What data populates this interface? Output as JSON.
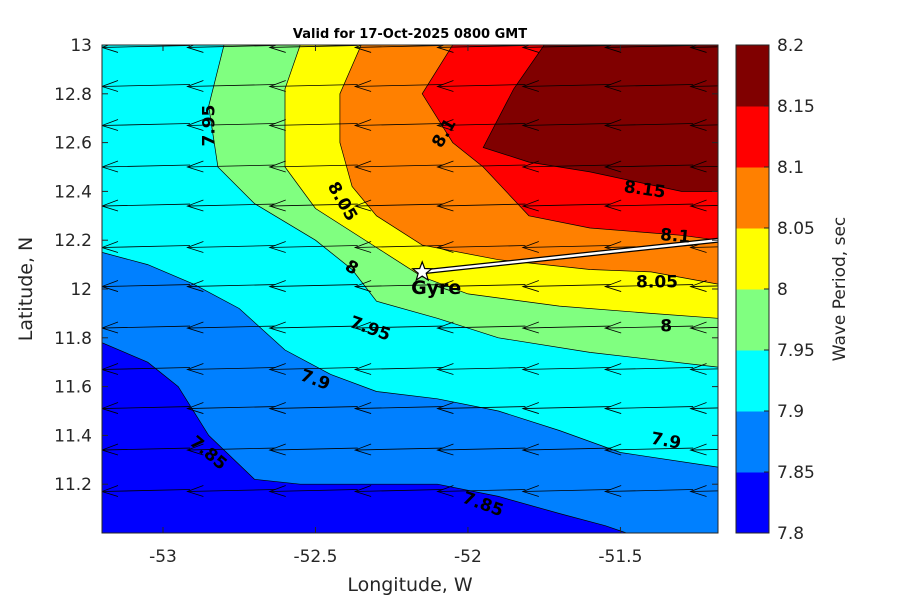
{
  "chart_data": {
    "type": "filled-contour",
    "title": "Valid for 17-Oct-2025 0800 GMT",
    "xlabel": "Longitude, W",
    "ylabel": "Latitude, N",
    "colorbar_label": "Wave Period, sec",
    "xlim": [
      -53.2,
      -51.18
    ],
    "ylim": [
      11.0,
      13.0
    ],
    "xticks": [
      -53,
      -52.5,
      -52,
      -51.5
    ],
    "xtick_labels": [
      "-53",
      "-52.5",
      "-52",
      "-51.5"
    ],
    "yticks": [
      11.2,
      11.4,
      11.6,
      11.8,
      12.0,
      12.2,
      12.4,
      12.6,
      12.8,
      13.0
    ],
    "ytick_labels": [
      "11.2",
      "11.4",
      "11.6",
      "11.8",
      "12",
      "12.2",
      "12.4",
      "12.6",
      "12.8",
      "13"
    ],
    "levels": [
      7.8,
      7.85,
      7.9,
      7.95,
      8.0,
      8.05,
      8.1,
      8.15,
      8.2
    ],
    "level_labels": [
      "7.8",
      "7.85",
      "7.9",
      "7.95",
      "8",
      "8.05",
      "8.1",
      "8.15",
      "8.2"
    ],
    "colors": [
      "#0000ff",
      "#0080ff",
      "#00ffff",
      "#80ff80",
      "#ffff00",
      "#ff8000",
      "#ff0000",
      "#800000"
    ],
    "contours": [
      {
        "level": 7.85,
        "points": [
          [
            -53.2,
            11.78
          ],
          [
            -53.05,
            11.7
          ],
          [
            -52.95,
            11.6
          ],
          [
            -52.85,
            11.4
          ],
          [
            -52.7,
            11.22
          ],
          [
            -52.55,
            11.2
          ],
          [
            -52.3,
            11.2
          ],
          [
            -52.1,
            11.2
          ],
          [
            -51.9,
            11.15
          ],
          [
            -51.7,
            11.08
          ],
          [
            -51.55,
            11.03
          ],
          [
            -51.48,
            11.0
          ]
        ]
      },
      {
        "level": 7.9,
        "points": [
          [
            -53.2,
            12.15
          ],
          [
            -53.05,
            12.1
          ],
          [
            -52.9,
            12.02
          ],
          [
            -52.75,
            11.92
          ],
          [
            -52.6,
            11.75
          ],
          [
            -52.45,
            11.65
          ],
          [
            -52.3,
            11.58
          ],
          [
            -52.1,
            11.55
          ],
          [
            -51.9,
            11.5
          ],
          [
            -51.7,
            11.42
          ],
          [
            -51.5,
            11.33
          ],
          [
            -51.18,
            11.27
          ]
        ]
      },
      {
        "level": 7.95,
        "points": [
          [
            -52.8,
            13.0
          ],
          [
            -52.85,
            12.75
          ],
          [
            -52.82,
            12.5
          ],
          [
            -52.7,
            12.35
          ],
          [
            -52.5,
            12.2
          ],
          [
            -52.38,
            12.08
          ],
          [
            -52.3,
            11.95
          ],
          [
            -52.1,
            11.88
          ],
          [
            -51.9,
            11.8
          ],
          [
            -51.6,
            11.74
          ],
          [
            -51.18,
            11.68
          ]
        ]
      },
      {
        "level": 8.0,
        "points": [
          [
            -52.55,
            13.0
          ],
          [
            -52.6,
            12.82
          ],
          [
            -52.6,
            12.5
          ],
          [
            -52.5,
            12.33
          ],
          [
            -52.3,
            12.17
          ],
          [
            -52.15,
            12.05
          ],
          [
            -52.0,
            11.98
          ],
          [
            -51.7,
            11.93
          ],
          [
            -51.4,
            11.9
          ],
          [
            -51.18,
            11.88
          ]
        ]
      },
      {
        "level": 8.05,
        "points": [
          [
            -52.35,
            13.0
          ],
          [
            -52.42,
            12.8
          ],
          [
            -52.42,
            12.6
          ],
          [
            -52.38,
            12.42
          ],
          [
            -52.3,
            12.3
          ],
          [
            -52.15,
            12.18
          ],
          [
            -51.9,
            12.12
          ],
          [
            -51.6,
            12.08
          ],
          [
            -51.4,
            12.07
          ],
          [
            -51.18,
            12.02
          ]
        ]
      },
      {
        "level": 8.1,
        "points": [
          [
            -52.05,
            13.0
          ],
          [
            -52.15,
            12.8
          ],
          [
            -52.05,
            12.6
          ],
          [
            -51.95,
            12.5
          ],
          [
            -51.8,
            12.3
          ],
          [
            -51.6,
            12.25
          ],
          [
            -51.3,
            12.22
          ],
          [
            -51.18,
            12.2
          ]
        ]
      },
      {
        "level": 8.15,
        "points": [
          [
            -51.75,
            13.0
          ],
          [
            -51.85,
            12.82
          ],
          [
            -51.95,
            12.58
          ],
          [
            -51.8,
            12.52
          ],
          [
            -51.6,
            12.48
          ],
          [
            -51.3,
            12.4
          ],
          [
            -51.18,
            12.4
          ]
        ]
      }
    ],
    "contour_labels": [
      {
        "text": "7.95",
        "lon": -52.85,
        "lat": 12.67,
        "angle": -90
      },
      {
        "text": "8.05",
        "lon": -52.41,
        "lat": 12.36,
        "angle": 60
      },
      {
        "text": "8.1",
        "lon": -52.08,
        "lat": 12.64,
        "angle": -60
      },
      {
        "text": "8.15",
        "lon": -51.42,
        "lat": 12.41,
        "angle": 8
      },
      {
        "text": "8.1",
        "lon": -51.32,
        "lat": 12.22,
        "angle": 5
      },
      {
        "text": "8",
        "lon": -52.38,
        "lat": 12.09,
        "angle": 30
      },
      {
        "text": "8.05",
        "lon": -51.38,
        "lat": 12.03,
        "angle": 0
      },
      {
        "text": "7.95",
        "lon": -52.32,
        "lat": 11.84,
        "angle": 20
      },
      {
        "text": "8",
        "lon": -51.35,
        "lat": 11.85,
        "angle": 0
      },
      {
        "text": "7.9",
        "lon": -52.5,
        "lat": 11.63,
        "angle": 20
      },
      {
        "text": "7.9",
        "lon": -51.35,
        "lat": 11.38,
        "angle": 10
      },
      {
        "text": "7.85",
        "lon": -52.85,
        "lat": 11.33,
        "angle": 40
      },
      {
        "text": "7.85",
        "lon": -51.95,
        "lat": 11.12,
        "angle": 20
      }
    ],
    "direction_arrows": {
      "direction": "westward",
      "note": "wave direction vectors from the east"
    },
    "arrow_rows_lat": [
      12.99,
      12.83,
      12.67,
      12.5,
      12.34,
      12.17,
      12.01,
      11.84,
      11.67,
      11.51,
      11.34,
      11.17
    ],
    "arrow_cols_lon": [
      -53.2,
      -52.92,
      -52.65,
      -52.37,
      -52.1,
      -51.82,
      -51.55,
      -51.27
    ],
    "track": [
      [
        -52.15,
        12.07
      ],
      [
        -51.18,
        12.2
      ]
    ],
    "marker": {
      "name": "Gyre",
      "lon": -52.15,
      "lat": 12.07
    }
  }
}
